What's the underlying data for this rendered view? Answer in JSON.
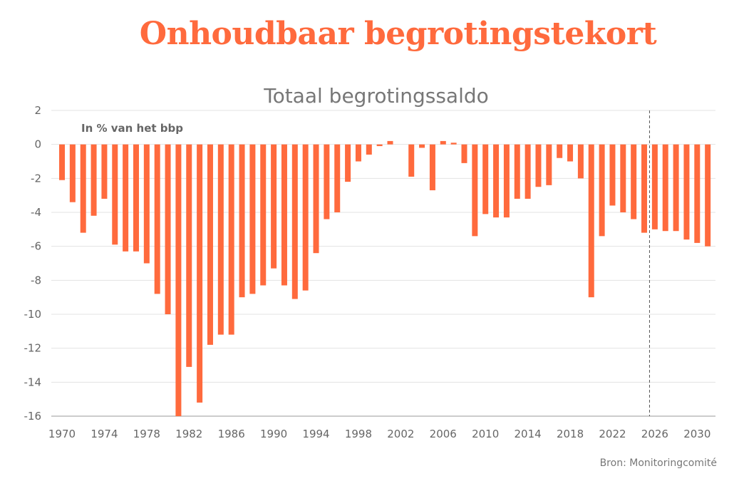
{
  "headline": "Onhoudbaar begrotingstekort",
  "source": "Bron: Monitoringcomité",
  "colors": {
    "accent": "#ff6a3d",
    "grid": "#e3e3e3",
    "text": "#666666"
  },
  "chart_data": {
    "type": "bar",
    "title": "Totaal begrotingssaldo",
    "unit_label": "In % van het bbp",
    "xlabel": "",
    "ylabel": "",
    "ylim": [
      -16,
      2
    ],
    "yticks": [
      2,
      0,
      -2,
      -4,
      -6,
      -8,
      -10,
      -12,
      -14,
      -16
    ],
    "xticks": [
      1970,
      1974,
      1978,
      1982,
      1986,
      1990,
      1994,
      1998,
      2002,
      2006,
      2010,
      2014,
      2018,
      2022,
      2026,
      2030
    ],
    "projection_marker_year": 2025.5,
    "grid": true,
    "categories": [
      1970,
      1971,
      1972,
      1973,
      1974,
      1975,
      1976,
      1977,
      1978,
      1979,
      1980,
      1981,
      1982,
      1983,
      1984,
      1985,
      1986,
      1987,
      1988,
      1989,
      1990,
      1991,
      1992,
      1993,
      1994,
      1995,
      1996,
      1997,
      1998,
      1999,
      2000,
      2001,
      2002,
      2003,
      2004,
      2005,
      2006,
      2007,
      2008,
      2009,
      2010,
      2011,
      2012,
      2013,
      2014,
      2015,
      2016,
      2017,
      2018,
      2019,
      2020,
      2021,
      2022,
      2023,
      2024,
      2025,
      2026,
      2027,
      2028,
      2029,
      2030,
      2031
    ],
    "values": [
      -2.1,
      -3.4,
      -5.2,
      -4.2,
      -3.2,
      -5.9,
      -6.3,
      -6.3,
      -7.0,
      -8.8,
      -10.0,
      -16.0,
      -13.1,
      -15.2,
      -11.8,
      -11.2,
      -11.2,
      -9.0,
      -8.8,
      -8.3,
      -7.3,
      -8.3,
      -9.1,
      -8.6,
      -6.4,
      -4.4,
      -4.0,
      -2.2,
      -1.0,
      -0.6,
      -0.1,
      0.2,
      0.0,
      -1.9,
      -0.2,
      -2.7,
      0.2,
      0.1,
      -1.1,
      -5.4,
      -4.1,
      -4.3,
      -4.3,
      -3.2,
      -3.2,
      -2.5,
      -2.4,
      -0.8,
      -1.0,
      -2.0,
      -9.0,
      -5.4,
      -3.6,
      -4.0,
      -4.4,
      -5.2,
      -5.0,
      -5.1,
      -5.1,
      -5.6,
      -5.8,
      -6.0
    ]
  }
}
